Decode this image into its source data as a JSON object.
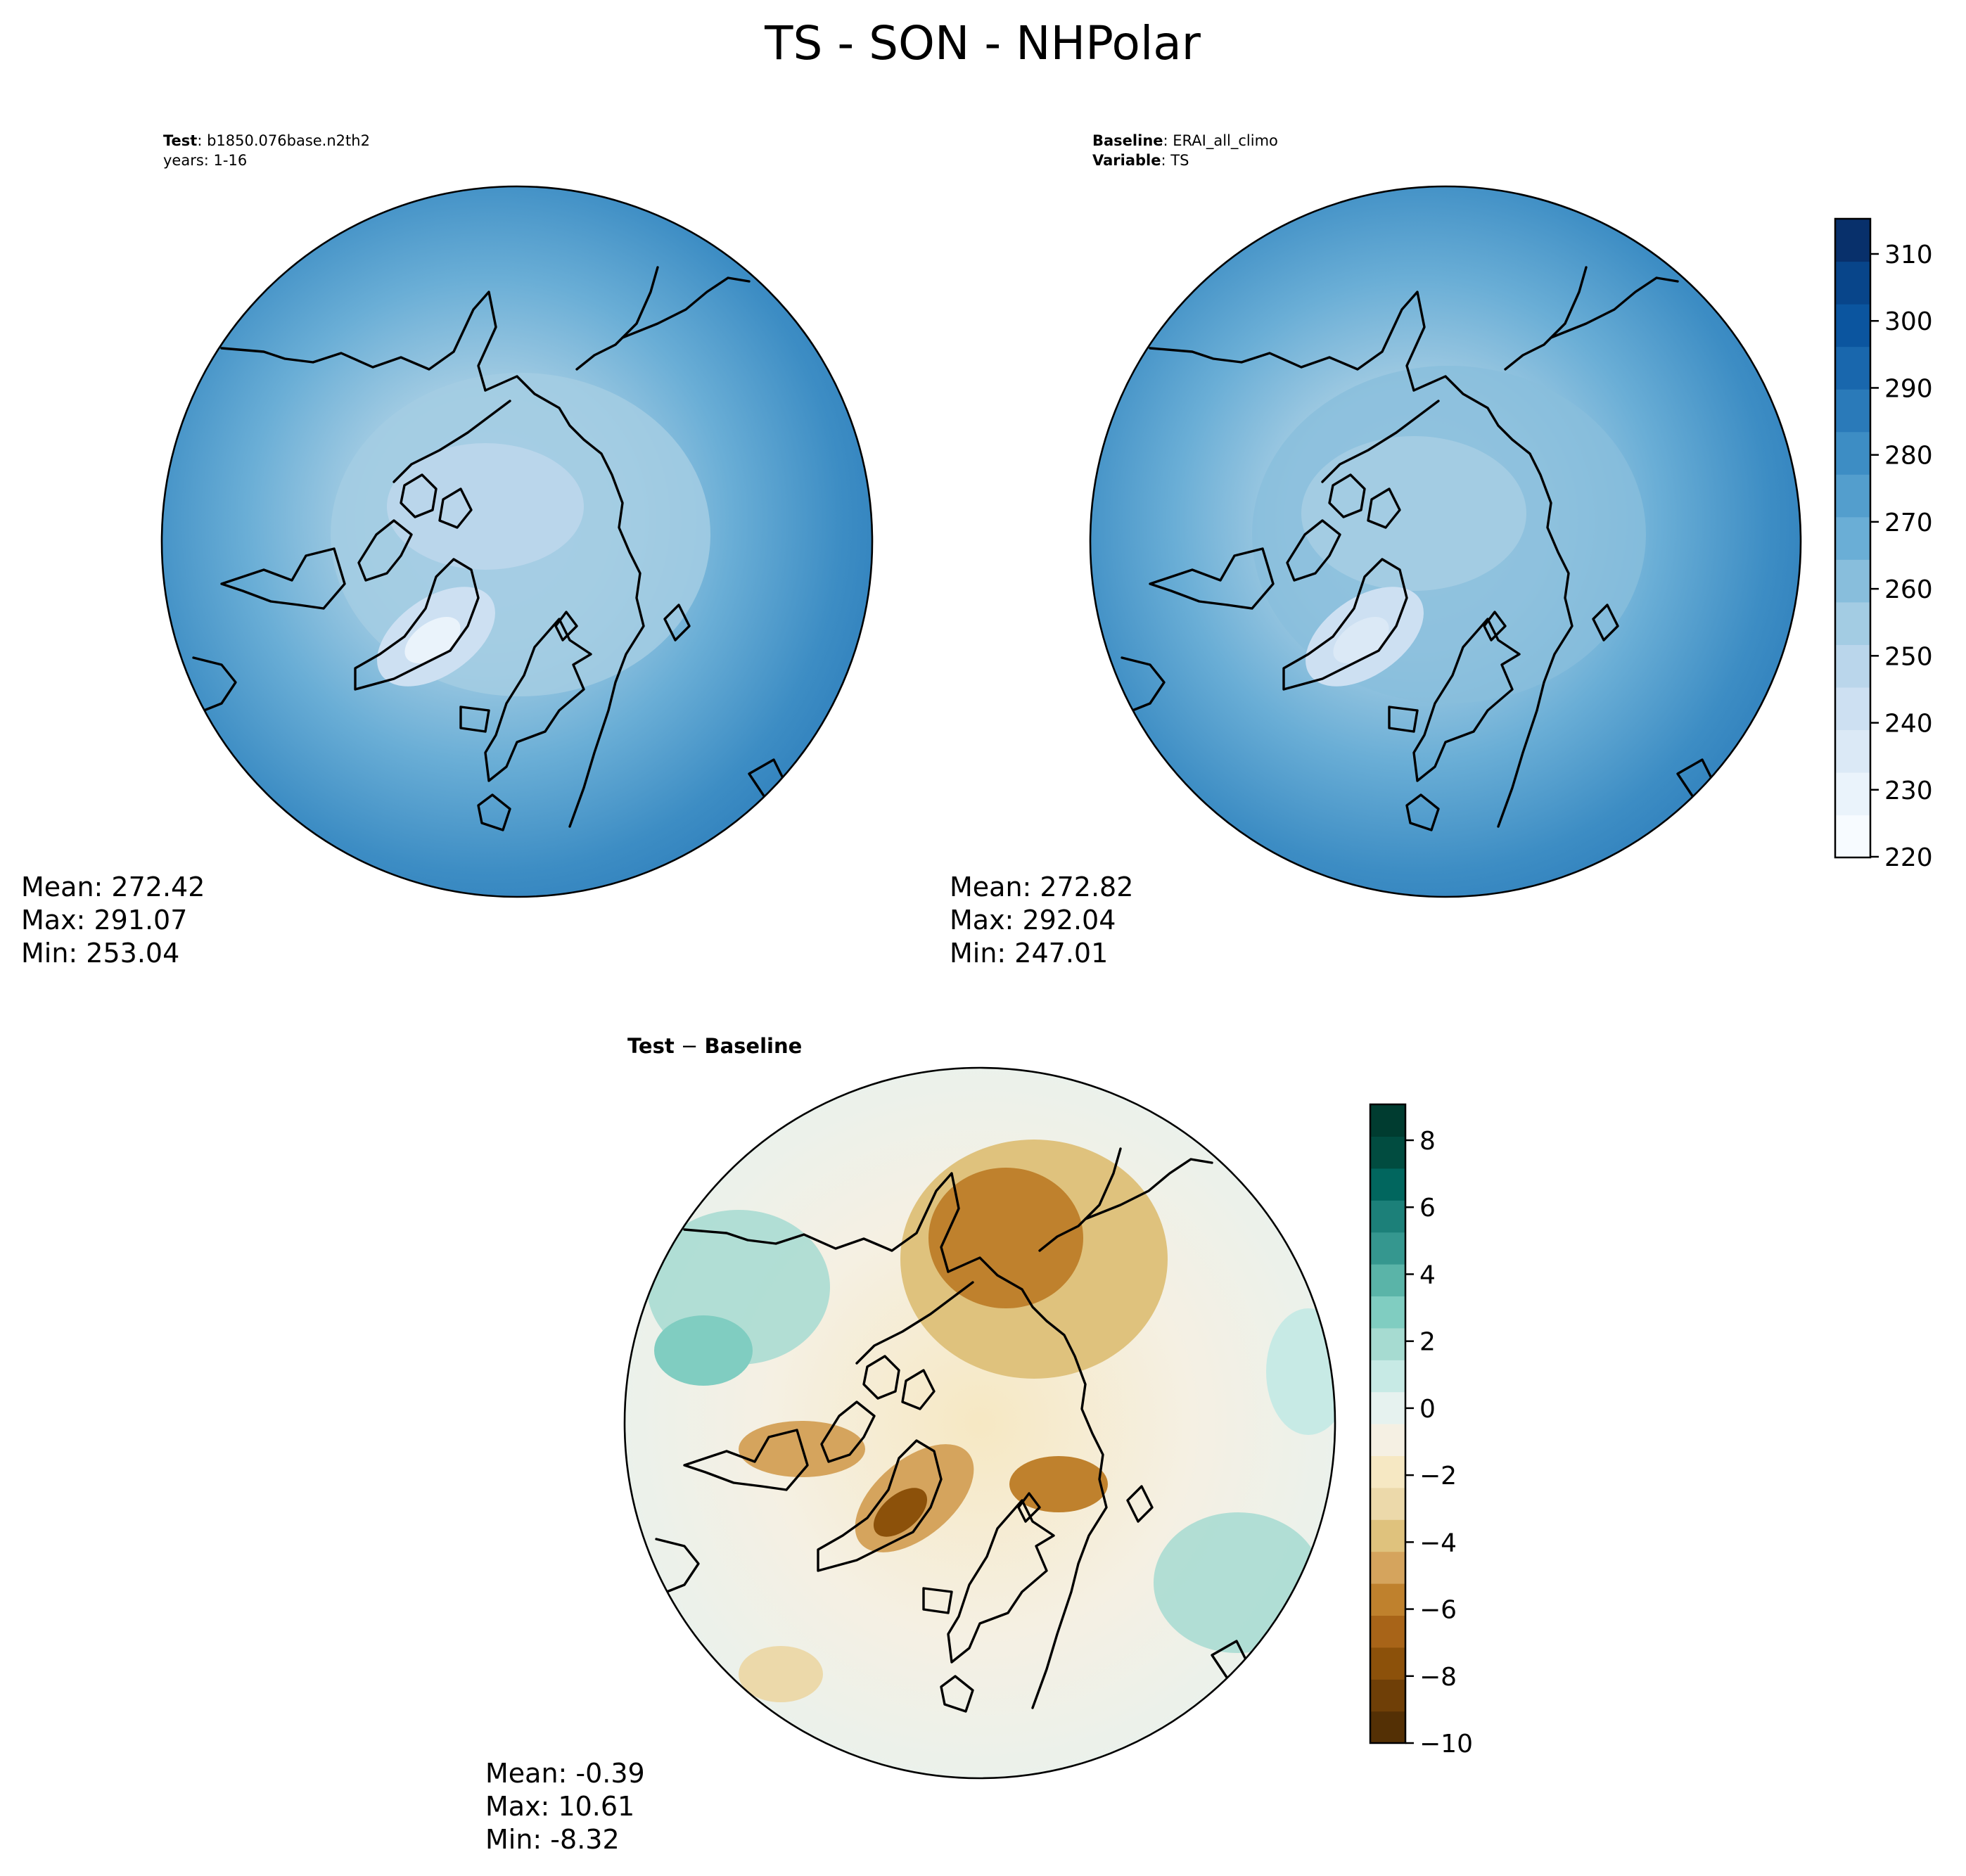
{
  "title": "TS - SON - NHPolar",
  "panels": {
    "test": {
      "label_key": "Test",
      "label_value": "b1850.076base.n2th2",
      "line2": "years: 1-16",
      "stats": {
        "mean": "Mean: 272.42",
        "max": "Max: 291.07",
        "min": "Min: 253.04"
      }
    },
    "baseline": {
      "label_key": "Baseline",
      "label_value": "ERAI_all_climo",
      "line2_key": "Variable",
      "line2_value": "TS",
      "stats": {
        "mean": "Mean: 272.82",
        "max": "Max: 292.04",
        "min": "Min: 247.01"
      }
    },
    "diff": {
      "label_key": "Test",
      "label_sep": " − ",
      "label_value": "Baseline",
      "stats": {
        "mean": "Mean: -0.39",
        "max": "Max: 10.61",
        "min": "Min: -8.32"
      }
    }
  },
  "colorbars": {
    "abs": {
      "ticks": [
        "310",
        "300",
        "290",
        "280",
        "270",
        "260",
        "250",
        "240",
        "230",
        "220"
      ],
      "colors": [
        "#f7fbff",
        "#eaf3fb",
        "#dbe9f6",
        "#cde0f2",
        "#bad6eb",
        "#a3cce3",
        "#88bedc",
        "#6aaed6",
        "#539ecd",
        "#3d8dc4",
        "#2a7ab9",
        "#1967ad",
        "#0b559f",
        "#08458a",
        "#08306b"
      ]
    },
    "diff": {
      "ticks": [
        "8",
        "6",
        "4",
        "2",
        "0",
        "−2",
        "−4",
        "−6",
        "−8",
        "−10"
      ],
      "colors": [
        "#543005",
        "#6f3f07",
        "#8c510a",
        "#a86418",
        "#bf812d",
        "#d5a45d",
        "#dfc27d",
        "#ecd9aa",
        "#f6e8c3",
        "#f5f0e3",
        "#e6f2ef",
        "#c7eae5",
        "#a6dbd1",
        "#80cdc1",
        "#5ab4a8",
        "#35978f",
        "#1c8079",
        "#01665e",
        "#014c40",
        "#003c30"
      ]
    }
  }
}
